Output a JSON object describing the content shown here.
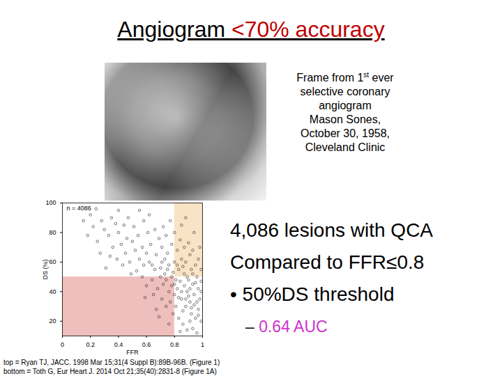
{
  "title_parts": [
    {
      "text": "Angiogram ",
      "color": "#000000"
    },
    {
      "text": "<70% accuracy",
      "color": "#c00000"
    }
  ],
  "caption": [
    [
      {
        "text": "Frame from 1"
      },
      {
        "text": "st",
        "sup": true
      },
      {
        "text": " ever"
      }
    ],
    [
      {
        "text": "selective coronary"
      }
    ],
    [
      {
        "text": "angiogram"
      }
    ],
    [
      {
        "text": "Mason Sones,"
      }
    ],
    [
      {
        "text": "October 30, 1958,"
      }
    ],
    [
      {
        "text": "Cleveland Clinic"
      }
    ]
  ],
  "bullets": [
    {
      "text": "4,086 lesions with QCA",
      "level": 0
    },
    {
      "text": "Compared to FFR≤0.8",
      "level": 0
    },
    {
      "text": "• 50%DS threshold",
      "level": 0
    },
    {
      "text": "– ",
      "level": 1,
      "highlight": "0.64 AUC",
      "color": "#cc33cc"
    }
  ],
  "citations": [
    "top = Ryan TJ, JACC. 1998 Mar 15;31(4 Suppl B):89B-96B. (Figure 1)",
    "bottom = Toth G, Eur Heart J. 2014 Oct 21;35(40):2831-8 (Figure 1A)"
  ],
  "chart_data": {
    "type": "scatter",
    "x_label": "FFR",
    "y_label": "DS (%)",
    "annotation": "n = 4086",
    "color": "#222222",
    "marker": "circle",
    "grid": false,
    "xlim": [
      0,
      1
    ],
    "xticks": [
      0,
      0.2,
      0.4,
      0.6,
      0.8,
      1
    ],
    "ylim": [
      10,
      100
    ],
    "yticks": [
      20,
      40,
      60,
      80,
      100
    ],
    "regions": [
      {
        "xlim": [
          0,
          0.8
        ],
        "ylim": [
          10,
          50
        ],
        "color": "#e8aaa6"
      },
      {
        "xlim": [
          0.8,
          1
        ],
        "ylim": [
          50,
          100
        ],
        "color": "#f7d9b1"
      }
    ],
    "x": [
      0.95,
      0.92,
      0.97,
      0.88,
      0.91,
      0.85,
      0.99,
      0.94,
      0.89,
      0.82,
      0.86,
      0.93,
      0.97,
      0.9,
      0.84,
      0.8,
      0.78,
      0.76,
      0.87,
      0.92,
      0.95,
      0.83,
      0.79,
      0.74,
      0.72,
      0.7,
      0.68,
      0.81,
      0.77,
      0.98,
      0.96,
      0.99,
      0.88,
      0.85,
      0.91,
      0.8,
      0.76,
      0.73,
      0.7,
      0.66,
      0.64,
      0.62,
      0.75,
      0.82,
      0.87,
      0.93,
      0.78,
      0.71,
      0.67,
      0.6,
      0.58,
      0.55,
      0.63,
      0.69,
      0.74,
      0.84,
      0.9,
      0.57,
      0.52,
      0.5,
      0.48,
      0.45,
      0.54,
      0.61,
      0.66,
      0.72,
      0.8,
      0.46,
      0.42,
      0.4,
      0.36,
      0.44,
      0.51,
      0.58,
      0.38,
      0.33,
      0.3,
      0.35,
      0.28,
      0.25,
      0.22,
      0.47,
      0.62,
      0.55,
      0.4,
      0.2,
      0.85,
      0.88,
      0.77,
      0.94,
      0.97,
      0.99,
      0.98,
      0.91,
      0.86,
      0.93,
      0.83,
      0.79,
      0.74,
      0.71,
      0.65,
      0.6,
      0.57,
      0.53,
      0.49,
      0.43,
      0.39,
      0.34,
      0.31,
      0.59,
      0.67,
      0.89,
      0.96,
      0.84,
      0.76,
      0.69,
      0.81,
      0.87,
      0.9,
      0.94,
      0.97,
      0.83,
      0.78,
      0.86,
      0.91,
      0.95,
      0.8,
      0.73,
      0.88,
      0.92,
      0.85,
      0.99,
      0.96,
      0.75,
      0.82,
      0.89,
      0.93,
      0.71,
      0.64,
      0.27,
      0.18,
      0.15,
      0.24
    ],
    "values": [
      22,
      25,
      28,
      30,
      33,
      35,
      20,
      38,
      40,
      42,
      27,
      45,
      42,
      48,
      47,
      38,
      44,
      40,
      52,
      55,
      58,
      55,
      53,
      48,
      45,
      50,
      42,
      30,
      33,
      35,
      50,
      47,
      60,
      62,
      65,
      60,
      58,
      62,
      56,
      55,
      48,
      60,
      66,
      68,
      70,
      68,
      72,
      70,
      65,
      66,
      58,
      62,
      72,
      76,
      78,
      75,
      73,
      70,
      68,
      74,
      60,
      66,
      78,
      80,
      82,
      84,
      80,
      76,
      72,
      80,
      70,
      85,
      84,
      88,
      86,
      78,
      82,
      90,
      88,
      74,
      84,
      90,
      92,
      95,
      95,
      92,
      85,
      90,
      88,
      80,
      62,
      55,
      70,
      20,
      18,
      15,
      22,
      25,
      30,
      35,
      38,
      44,
      50,
      54,
      52,
      58,
      62,
      64,
      56,
      36,
      28,
      14,
      12,
      13,
      18,
      23,
      48,
      44,
      37,
      31,
      24,
      36,
      50,
      57,
      42,
      46,
      45,
      52,
      35,
      29,
      40,
      40,
      33,
      55,
      58,
      50,
      52,
      60,
      58,
      66,
      78,
      88,
      96
    ]
  }
}
